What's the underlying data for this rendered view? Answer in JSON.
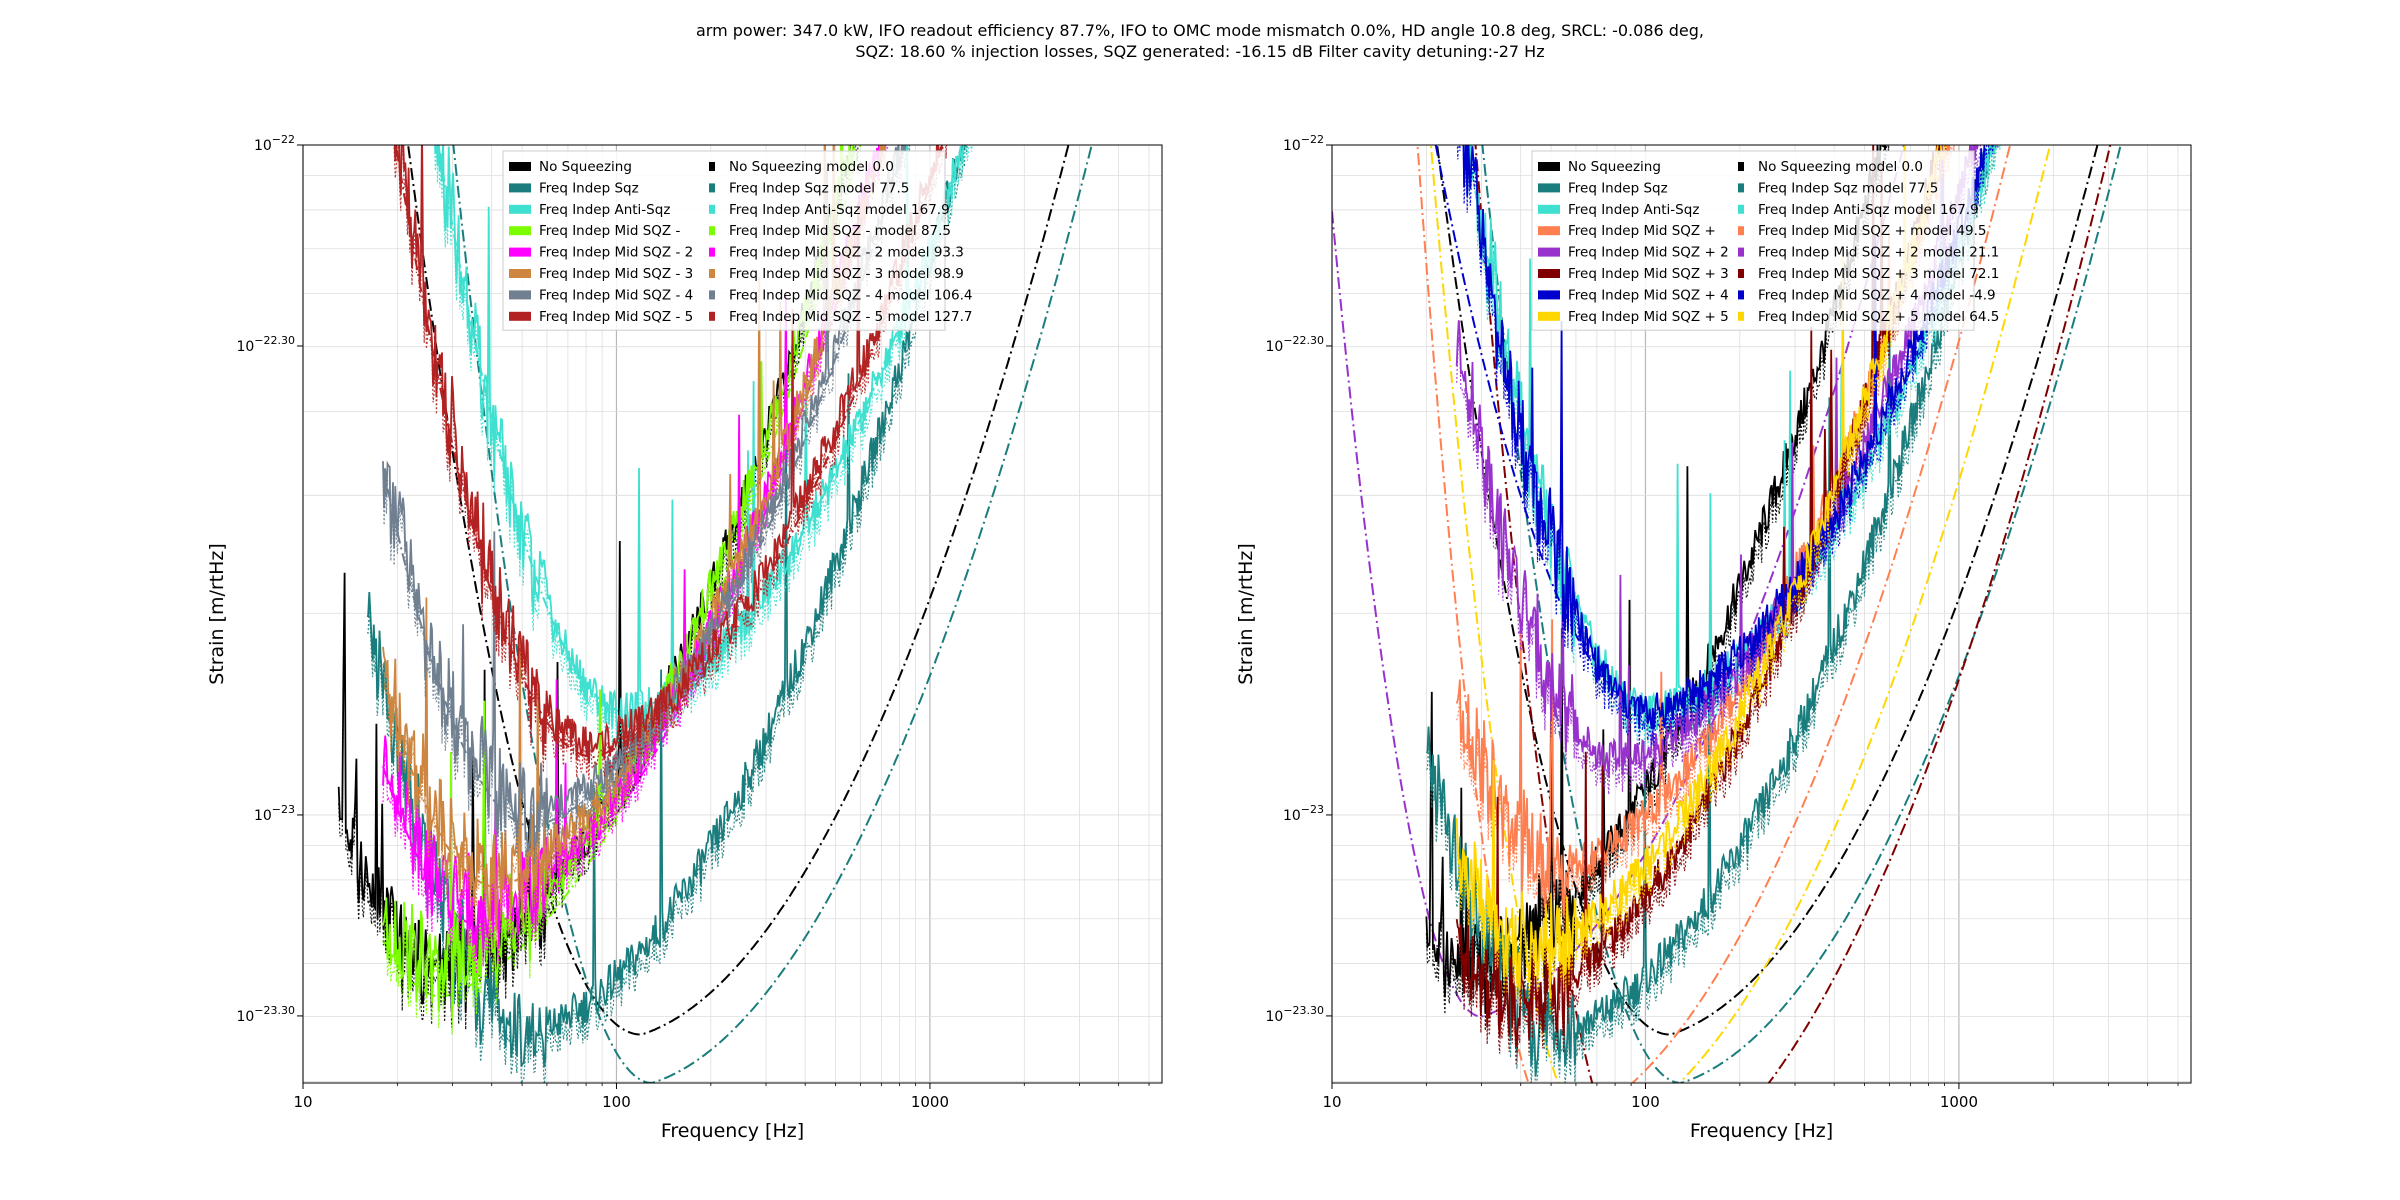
{
  "figure": {
    "suptitle_line1": "arm power: 347.0 kW, IFO readout efficiency 87.7%, IFO to OMC mode mismatch 0.0%, HD angle 10.8 deg, SRCL: -0.086 deg,",
    "suptitle_line2": "SQZ: 18.60 % injection losses, SQZ generated: -16.15 dB Filter cavity detuning:-27 Hz"
  },
  "chart_data": [
    {
      "type": "line",
      "xlabel": "Frequency [Hz]",
      "ylabel": "Strain [m/rtHz]",
      "xscale": "log",
      "yscale": "log",
      "xlim": [
        10,
        5500
      ],
      "ylim": [
        3.98e-24,
        1e-22
      ],
      "grid": true,
      "legend_position": "top-center",
      "xtick_labels": [
        "10",
        "100",
        "1000"
      ],
      "ytick_labels": [
        "10^-22",
        "10^-22.30",
        "10^-23",
        "10^-23.30"
      ],
      "series": [
        {
          "name": "No Squeezing",
          "color": "#000000",
          "style": "solid",
          "kind": "meas",
          "min_f": 28,
          "min_y": 5.9e-24,
          "sharp": 0.9,
          "f_lo": 13,
          "cut": 1e-22
        },
        {
          "name": "Freq Indep Sqz",
          "color": "#1a7d7d",
          "style": "solid",
          "kind": "meas",
          "min_f": 55,
          "min_y": 4.75e-24,
          "sharp": 0.9,
          "f_lo": 16,
          "cut": 1e-22
        },
        {
          "name": "Freq Indep Anti-Sqz",
          "color": "#40e0d0",
          "style": "solid",
          "kind": "meas",
          "min_f": 110,
          "min_y": 1.42e-23,
          "sharp": 0.95,
          "f_lo": 18,
          "cut": 1e-22
        },
        {
          "name": "Freq Indep Mid SQZ -",
          "color": "#7cfc00",
          "style": "solid",
          "kind": "meas",
          "min_f": 28,
          "min_y": 5.9e-24,
          "sharp": 0.95,
          "f_lo": 18,
          "cut": 1e-22
        },
        {
          "name": "Freq Indep Mid SQZ - 2",
          "color": "#ff00ff",
          "style": "solid",
          "kind": "meas",
          "min_f": 38,
          "min_y": 7.2e-24,
          "sharp": 0.95,
          "f_lo": 18,
          "cut": 1e-22
        },
        {
          "name": "Freq Indep Mid SQZ - 3",
          "color": "#cd853f",
          "style": "solid",
          "kind": "meas",
          "min_f": 42,
          "min_y": 8.2e-24,
          "sharp": 0.95,
          "f_lo": 18,
          "cut": 1e-22
        },
        {
          "name": "Freq Indep Mid SQZ - 4",
          "color": "#708090",
          "style": "solid",
          "kind": "meas",
          "min_f": 55,
          "min_y": 1e-23,
          "sharp": 0.95,
          "f_lo": 18,
          "cut": 1e-22
        },
        {
          "name": "Freq Indep Mid SQZ - 5",
          "color": "#b22222",
          "style": "solid",
          "kind": "meas",
          "min_f": 85,
          "min_y": 1.27e-23,
          "sharp": 0.95,
          "f_lo": 18,
          "cut": 1e-22
        }
      ],
      "models": [
        {
          "name": "No Squeezing model 0.0",
          "color": "#000000",
          "style": "dashdot",
          "min_f": 120,
          "min_y": 4.7e-24,
          "sharp": 1.0,
          "f_lo": 10,
          "cut": 1e-22
        },
        {
          "name": "Freq Indep Sqz model 77.5",
          "color": "#1a7d7d",
          "style": "dashdot",
          "min_f": 130,
          "min_y": 3.98e-24,
          "sharp": 1.45,
          "f_lo": 10,
          "cut": 1e-22
        },
        {
          "name": "Freq Indep Anti-Sqz model 167.9",
          "color": "#40e0d0",
          "style": "dashdot",
          "min_f": 110,
          "min_y": 1.42e-23,
          "sharp": 0.95,
          "f_lo": 10,
          "cut": 1e-22
        },
        {
          "name": "Freq Indep Mid SQZ - model 87.5",
          "color": "#7cfc00",
          "style": "dashdot",
          "min_f": 28,
          "min_y": 5.35e-24,
          "sharp": 0.95,
          "f_lo": 18,
          "cut": 1e-22
        },
        {
          "name": "Freq Indep Mid SQZ - 2 model 93.3",
          "color": "#ff00ff",
          "style": "dashdot",
          "min_f": 38,
          "min_y": 6.8e-24,
          "sharp": 0.95,
          "f_lo": 18,
          "cut": 1e-22
        },
        {
          "name": "Freq Indep Mid SQZ - 3 model 98.9",
          "color": "#cd853f",
          "style": "dashdot",
          "min_f": 42,
          "min_y": 7.8e-24,
          "sharp": 0.95,
          "f_lo": 18,
          "cut": 1e-22
        },
        {
          "name": "Freq Indep Mid SQZ - 4 model 106.4",
          "color": "#708090",
          "style": "dashdot",
          "min_f": 55,
          "min_y": 9.6e-24,
          "sharp": 0.95,
          "f_lo": 18,
          "cut": 1e-22
        },
        {
          "name": "Freq Indep Mid SQZ - 5 model 127.7",
          "color": "#b22222",
          "style": "dashdot",
          "min_f": 85,
          "min_y": 1.22e-23,
          "sharp": 0.95,
          "f_lo": 18,
          "cut": 1e-22
        }
      ]
    },
    {
      "type": "line",
      "xlabel": "Frequency [Hz]",
      "ylabel": "Strain [m/rtHz]",
      "xscale": "log",
      "yscale": "log",
      "xlim": [
        10,
        5500
      ],
      "ylim": [
        3.98e-24,
        1e-22
      ],
      "grid": true,
      "legend_position": "top-center",
      "xtick_labels": [
        "10",
        "100",
        "1000"
      ],
      "ytick_labels": [
        "10^-22",
        "10^-22.30",
        "10^-23",
        "10^-23.30"
      ],
      "series": [
        {
          "name": "No Squeezing",
          "color": "#000000",
          "style": "solid",
          "kind": "meas",
          "min_f": 28,
          "min_y": 5.9e-24,
          "sharp": 0.9,
          "f_lo": 20,
          "cut": 1e-22
        },
        {
          "name": "Freq Indep Sqz",
          "color": "#1a7d7d",
          "style": "solid",
          "kind": "meas",
          "min_f": 55,
          "min_y": 4.75e-24,
          "sharp": 0.9,
          "f_lo": 20,
          "cut": 1e-22
        },
        {
          "name": "Freq Indep Anti-Sqz",
          "color": "#40e0d0",
          "style": "solid",
          "kind": "meas",
          "min_f": 110,
          "min_y": 1.42e-23,
          "sharp": 0.95,
          "f_lo": 20,
          "cut": 1e-22
        },
        {
          "name": "Freq Indep Mid SQZ +",
          "color": "#ff7f50",
          "style": "solid",
          "kind": "meas",
          "min_f": 55,
          "min_y": 8.3e-24,
          "sharp": 0.95,
          "f_lo": 25,
          "cut": 1e-22
        },
        {
          "name": "Freq Indep Mid SQZ + 2",
          "color": "#9932cc",
          "style": "solid",
          "kind": "meas",
          "min_f": 85,
          "min_y": 1.2e-23,
          "sharp": 0.95,
          "f_lo": 25,
          "cut": 1e-22
        },
        {
          "name": "Freq Indep Mid SQZ + 3",
          "color": "#800000",
          "style": "solid",
          "kind": "meas",
          "min_f": 40,
          "min_y": 5.3e-24,
          "sharp": 0.92,
          "f_lo": 25,
          "cut": 1e-22
        },
        {
          "name": "Freq Indep Mid SQZ + 4",
          "color": "#0000cd",
          "style": "solid",
          "kind": "meas",
          "min_f": 105,
          "min_y": 1.42e-23,
          "sharp": 1.0,
          "f_lo": 25,
          "cut": 1e-22
        },
        {
          "name": "Freq Indep Mid SQZ + 5",
          "color": "#ffd700",
          "style": "solid",
          "kind": "meas",
          "min_f": 45,
          "min_y": 6.3e-24,
          "sharp": 0.95,
          "f_lo": 25,
          "cut": 1e-22
        }
      ],
      "models": [
        {
          "name": "No Squeezing model 0.0",
          "color": "#000000",
          "style": "dashdot",
          "min_f": 120,
          "min_y": 4.7e-24,
          "sharp": 1.0,
          "f_lo": 10,
          "cut": 1e-22
        },
        {
          "name": "Freq Indep Sqz model 77.5",
          "color": "#1a7d7d",
          "style": "dashdot",
          "min_f": 130,
          "min_y": 3.98e-24,
          "sharp": 1.45,
          "f_lo": 10,
          "cut": 1e-22
        },
        {
          "name": "Freq Indep Anti-Sqz model 167.9",
          "color": "#40e0d0",
          "style": "dashdot",
          "min_f": 110,
          "min_y": 1.42e-23,
          "sharp": 0.95,
          "f_lo": 10,
          "cut": 1e-22
        },
        {
          "name": "Freq Indep Mid SQZ + model 49.5",
          "color": "#ff7f50",
          "style": "dashdot",
          "min_f": 53,
          "min_y": 3.4e-24,
          "sharp": 3.0,
          "f_lo": 14,
          "cut": 1e-22
        },
        {
          "name": "Freq Indep Mid SQZ + 2 model 21.1",
          "color": "#9932cc",
          "style": "dashdot",
          "min_f": 30,
          "min_y": 5e-24,
          "sharp": 2.2,
          "f_lo": 10,
          "cut": 1e-22
        },
        {
          "name": "Freq Indep Mid SQZ + 3 model 72.1",
          "color": "#800000",
          "style": "dashdot",
          "min_f": 100,
          "min_y": 2.8e-24,
          "sharp": 2.2,
          "f_lo": 20,
          "cut": 1e-22
        },
        {
          "name": "Freq Indep Mid SQZ + 4 model -4.9",
          "color": "#0000cd",
          "style": "dashdot",
          "min_f": 110,
          "min_y": 1.42e-23,
          "sharp": 0.7,
          "f_lo": 10,
          "cut": 1e-22
        },
        {
          "name": "Freq Indep Mid SQZ + 5 model 64.5",
          "color": "#ffd700",
          "style": "dashdot",
          "min_f": 70,
          "min_y": 3.3e-24,
          "sharp": 2.2,
          "f_lo": 17,
          "cut": 1e-22
        }
      ]
    }
  ]
}
